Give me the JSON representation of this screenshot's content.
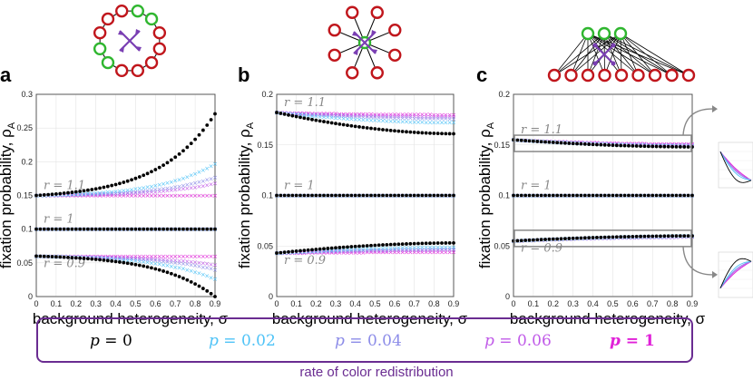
{
  "chart_data": [
    {
      "type": "scatter",
      "panel": "a",
      "graph": "cycle",
      "xlabel": "background heterogeneity, σ",
      "ylabel": "fixation probability, ρ",
      "ylabel_sub": "A",
      "xlim": [
        0,
        0.9
      ],
      "ylim": [
        0,
        0.3
      ],
      "xticks": [
        0,
        0.1,
        0.2,
        0.3,
        0.4,
        0.5,
        0.6,
        0.7,
        0.8,
        0.9
      ],
      "yticks": [
        0,
        0.05,
        0.1,
        0.15,
        0.2,
        0.25,
        0.3
      ],
      "annotations": [
        "r = 1.1",
        "r = 1",
        "r = 0.9"
      ],
      "series": [
        {
          "name": "p = 0",
          "color": "#000000",
          "curves": [
            {
              "base": 0.15,
              "end": 0.271,
              "shape": "exp"
            },
            {
              "base": 0.1,
              "end": 0.1,
              "shape": "flat"
            },
            {
              "base": 0.06,
              "end": 0.0,
              "shape": "exp"
            }
          ]
        },
        {
          "name": "p = 0.02",
          "color": "#4fc3f7",
          "curves": [
            {
              "base": 0.15,
              "end": 0.197,
              "shape": "exp"
            },
            {
              "base": 0.1,
              "end": 0.1,
              "shape": "flat"
            },
            {
              "base": 0.06,
              "end": 0.026,
              "shape": "exp"
            }
          ]
        },
        {
          "name": "p = 0.04",
          "color": "#8c8ce8",
          "curves": [
            {
              "base": 0.15,
              "end": 0.177,
              "shape": "exp"
            },
            {
              "base": 0.1,
              "end": 0.1,
              "shape": "flat"
            },
            {
              "base": 0.06,
              "end": 0.04,
              "shape": "exp"
            }
          ]
        },
        {
          "name": "p = 0.06",
          "color": "#c05ae8",
          "curves": [
            {
              "base": 0.15,
              "end": 0.168,
              "shape": "exp"
            },
            {
              "base": 0.1,
              "end": 0.1,
              "shape": "flat"
            },
            {
              "base": 0.06,
              "end": 0.047,
              "shape": "exp"
            }
          ]
        },
        {
          "name": "p = 1",
          "color": "#e020d8",
          "curves": [
            {
              "base": 0.15,
              "end": 0.15,
              "shape": "flat"
            },
            {
              "base": 0.1,
              "end": 0.1,
              "shape": "flat"
            },
            {
              "base": 0.06,
              "end": 0.06,
              "shape": "flat"
            }
          ]
        }
      ]
    },
    {
      "type": "scatter",
      "panel": "b",
      "graph": "star",
      "xlabel": "background heterogeneity, σ",
      "ylabel": "fixation probability, ρ",
      "ylabel_sub": "A",
      "xlim": [
        0,
        0.9
      ],
      "ylim": [
        0,
        0.2
      ],
      "xticks": [
        0,
        0.1,
        0.2,
        0.3,
        0.4,
        0.5,
        0.6,
        0.7,
        0.8,
        0.9
      ],
      "yticks": [
        0,
        0.05,
        0.1,
        0.15,
        0.2
      ],
      "annotations": [
        "r = 1.1",
        "r = 1",
        "r = 0.9"
      ],
      "series": [
        {
          "name": "p = 0",
          "color": "#000000",
          "curves": [
            {
              "base": 0.182,
              "end": 0.161,
              "shape": "sqrt"
            },
            {
              "base": 0.1,
              "end": 0.1,
              "shape": "flat"
            },
            {
              "base": 0.043,
              "end": 0.053,
              "shape": "sqrt"
            }
          ]
        },
        {
          "name": "p = 0.02",
          "color": "#4fc3f7",
          "curves": [
            {
              "base": 0.182,
              "end": 0.172,
              "shape": "sqrt"
            },
            {
              "base": 0.1,
              "end": 0.1,
              "shape": "flat"
            },
            {
              "base": 0.043,
              "end": 0.049,
              "shape": "sqrt"
            }
          ]
        },
        {
          "name": "p = 0.04",
          "color": "#8c8ce8",
          "curves": [
            {
              "base": 0.182,
              "end": 0.176,
              "shape": "sqrt"
            },
            {
              "base": 0.1,
              "end": 0.1,
              "shape": "flat"
            },
            {
              "base": 0.043,
              "end": 0.047,
              "shape": "sqrt"
            }
          ]
        },
        {
          "name": "p = 0.06",
          "color": "#c05ae8",
          "curves": [
            {
              "base": 0.182,
              "end": 0.178,
              "shape": "sqrt"
            },
            {
              "base": 0.1,
              "end": 0.1,
              "shape": "flat"
            },
            {
              "base": 0.043,
              "end": 0.046,
              "shape": "sqrt"
            }
          ]
        },
        {
          "name": "p = 1",
          "color": "#e020d8",
          "curves": [
            {
              "base": 0.182,
              "end": 0.18,
              "shape": "sqrt"
            },
            {
              "base": 0.1,
              "end": 0.1,
              "shape": "flat"
            },
            {
              "base": 0.043,
              "end": 0.044,
              "shape": "sqrt"
            }
          ]
        }
      ]
    },
    {
      "type": "scatter",
      "panel": "c",
      "graph": "complete bipartite",
      "xlabel": "background heterogeneity, σ",
      "ylabel": "fixation probability, ρ",
      "ylabel_sub": "A",
      "xlim": [
        0,
        0.9
      ],
      "ylim": [
        0,
        0.2
      ],
      "xticks": [
        0,
        0.1,
        0.2,
        0.3,
        0.4,
        0.5,
        0.6,
        0.7,
        0.8,
        0.9
      ],
      "yticks": [
        0,
        0.05,
        0.1,
        0.15,
        0.2
      ],
      "annotations": [
        "r = 1.1",
        "r = 1",
        "r = 0.9"
      ],
      "series": [
        {
          "name": "p = 0",
          "color": "#000000",
          "curves": [
            {
              "base": 0.155,
              "end": 0.148,
              "shape": "sqrt"
            },
            {
              "base": 0.1,
              "end": 0.1,
              "shape": "flat"
            },
            {
              "base": 0.055,
              "end": 0.06,
              "shape": "sqrt"
            }
          ]
        },
        {
          "name": "p = 0.02",
          "color": "#4fc3f7",
          "curves": [
            {
              "base": 0.155,
              "end": 0.149,
              "shape": "sqrt"
            },
            {
              "base": 0.1,
              "end": 0.1,
              "shape": "flat"
            },
            {
              "base": 0.055,
              "end": 0.06,
              "shape": "sqrt"
            }
          ]
        },
        {
          "name": "p = 0.04",
          "color": "#8c8ce8",
          "curves": [
            {
              "base": 0.155,
              "end": 0.15,
              "shape": "sqrt"
            },
            {
              "base": 0.1,
              "end": 0.1,
              "shape": "flat"
            },
            {
              "base": 0.055,
              "end": 0.059,
              "shape": "sqrt"
            }
          ]
        },
        {
          "name": "p = 0.06",
          "color": "#c05ae8",
          "curves": [
            {
              "base": 0.155,
              "end": 0.15,
              "shape": "sqrt"
            },
            {
              "base": 0.1,
              "end": 0.1,
              "shape": "flat"
            },
            {
              "base": 0.055,
              "end": 0.059,
              "shape": "sqrt"
            }
          ]
        },
        {
          "name": "p = 1",
          "color": "#e020d8",
          "curves": [
            {
              "base": 0.155,
              "end": 0.151,
              "shape": "sqrt"
            },
            {
              "base": 0.1,
              "end": 0.1,
              "shape": "flat"
            },
            {
              "base": 0.055,
              "end": 0.059,
              "shape": "sqrt"
            }
          ]
        }
      ]
    }
  ],
  "legend": {
    "items": [
      {
        "var": "p",
        "value": "0",
        "label": "p = 0",
        "color": "#000000"
      },
      {
        "var": "p",
        "value": "0.02",
        "label": "p = 0.02",
        "color": "#4fc3f7"
      },
      {
        "var": "p",
        "value": "0.04",
        "label": "p = 0.04",
        "color": "#8c8ce8"
      },
      {
        "var": "p",
        "value": "0.06",
        "label": "p = 0.06",
        "color": "#c05ae8"
      },
      {
        "var": "p",
        "value": "1",
        "label": "p = 1",
        "color": "#e020d8"
      }
    ],
    "caption": "rate of color redistribution",
    "border_color": "#6a2c91"
  },
  "node_colors": {
    "red": "#c0161c",
    "green": "#2fb62f",
    "arrow": "#7a3fb3"
  }
}
